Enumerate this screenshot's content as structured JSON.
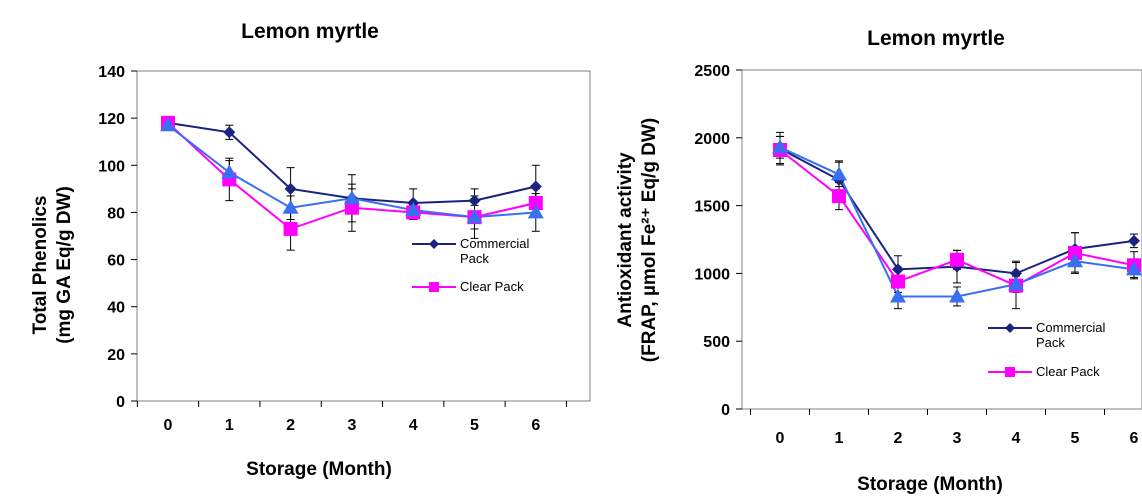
{
  "chart_data": [
    {
      "type": "line",
      "title": "Lemon myrtle",
      "xlabel": "Storage (Month)",
      "ylabel_lines": [
        "Total Phenolics",
        "(mg GA Eq/g DW)"
      ],
      "x": [
        "0",
        "1",
        "2",
        "3",
        "4",
        "5",
        "6"
      ],
      "ylim": [
        0,
        140
      ],
      "yticks": [
        0,
        20,
        40,
        60,
        80,
        100,
        120,
        140
      ],
      "grid": false,
      "legend_position": "right",
      "series": [
        {
          "name": "Commercial Pack",
          "color": "#1a237e",
          "marker": "diamond",
          "values": [
            118,
            114,
            90,
            86,
            84,
            85,
            91
          ],
          "errors": [
            2,
            3,
            9,
            10,
            6,
            5,
            9
          ]
        },
        {
          "name": "Clear Pack",
          "color": "#ff00ff",
          "marker": "square",
          "values": [
            118,
            94,
            73,
            82,
            80,
            78,
            84
          ],
          "errors": [
            2,
            9,
            9,
            10,
            3,
            9,
            6
          ]
        },
        {
          "color": "#3a6ff0",
          "marker": "triangle",
          "values": [
            117,
            97,
            82,
            86,
            81,
            78,
            80
          ],
          "errors": [
            2,
            5,
            5,
            4,
            3,
            5,
            8
          ]
        }
      ]
    },
    {
      "type": "line",
      "title": "Lemon myrtle",
      "xlabel": "Storage (Month)",
      "ylabel_lines": [
        "Antioxidant activity",
        "(FRAP, µmol Fe²⁺ Eq/g DW)"
      ],
      "x": [
        "0",
        "1",
        "2",
        "3",
        "4",
        "5",
        "6"
      ],
      "ylim": [
        0,
        2500
      ],
      "yticks": [
        0,
        500,
        1000,
        1500,
        2000,
        2500
      ],
      "grid": false,
      "legend_position": "right",
      "series": [
        {
          "name": "Commercial Pack",
          "color": "#1a237e",
          "marker": "diamond",
          "values": [
            1920,
            1690,
            1030,
            1050,
            1000,
            1180,
            1240
          ],
          "errors": [
            120,
            140,
            100,
            120,
            90,
            120,
            50
          ]
        },
        {
          "name": "Clear Pack",
          "color": "#ff00ff",
          "marker": "square",
          "values": [
            1910,
            1570,
            940,
            1100,
            910,
            1150,
            1060
          ],
          "errors": [
            100,
            100,
            80,
            70,
            170,
            150,
            100
          ]
        },
        {
          "color": "#3a6ff0",
          "marker": "triangle",
          "values": [
            1930,
            1730,
            830,
            830,
            920,
            1090,
            1030
          ],
          "errors": [
            80,
            90,
            90,
            70,
            60,
            80,
            60
          ]
        }
      ]
    }
  ]
}
